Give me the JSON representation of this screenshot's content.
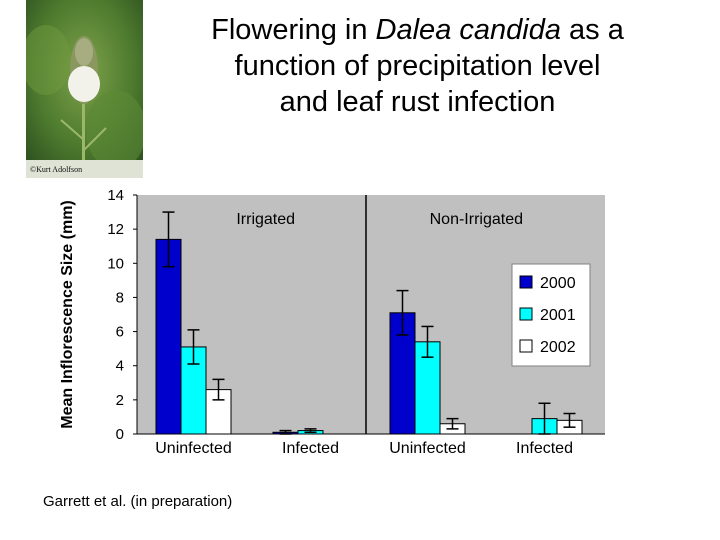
{
  "title": {
    "line1_pre": "Flowering in ",
    "line1_italic": "Dalea candida",
    "line1_post": " as a",
    "line2": "function of precipitation level",
    "line3": "and leaf rust infection"
  },
  "photo": {
    "credit": "©Kurt Adolfson"
  },
  "citation": "Garrett et al. (in preparation)",
  "colors": {
    "2000": "#0000cc",
    "2001": "#00ffff",
    "2002": "#ffffff",
    "plot_bg": "#c0c0c0"
  },
  "chart_data": {
    "type": "bar",
    "ylabel": "Mean Inflorescence Size (mm)",
    "ylim": [
      0,
      14
    ],
    "yticks": [
      0,
      2,
      4,
      6,
      8,
      10,
      12,
      14
    ],
    "panels": [
      "Irrigated",
      "Non-Irrigated"
    ],
    "categories": [
      "Uninfected",
      "Infected",
      "Uninfected",
      "Infected"
    ],
    "series": [
      {
        "name": "2000",
        "values": [
          11.4,
          0.1,
          7.1,
          0
        ],
        "errors": [
          1.6,
          0.1,
          1.3,
          0
        ]
      },
      {
        "name": "2001",
        "values": [
          5.1,
          0.2,
          5.4,
          0.9
        ],
        "errors": [
          1.0,
          0.1,
          0.9,
          0.9
        ]
      },
      {
        "name": "2002",
        "values": [
          2.6,
          0,
          0.6,
          0.8
        ],
        "errors": [
          0.6,
          0,
          0.3,
          0.4
        ]
      }
    ],
    "legend_position": "right",
    "grid": false
  }
}
